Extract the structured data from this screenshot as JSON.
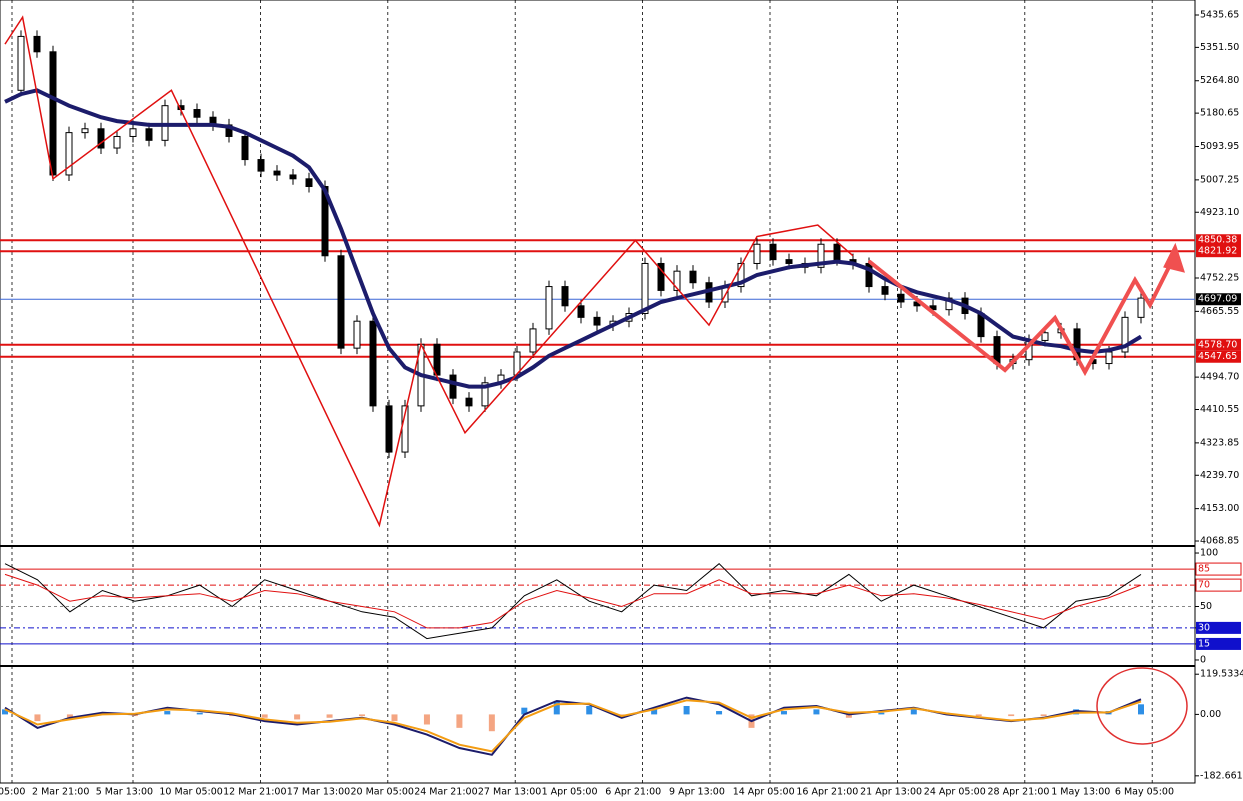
{
  "time_axis": [
    "05:00",
    "2 Mar 21:00",
    "5 Mar 13:00",
    "10 Mar 05:00",
    "12 Mar 21:00",
    "17 Mar 13:00",
    "20 Mar 05:00",
    "24 Mar 21:00",
    "27 Mar 13:00",
    "1 Apr 05:00",
    "6 Apr 21:00",
    "9 Apr 13:00",
    "14 Apr 05:00",
    "16 Apr 21:00",
    "21 Apr 13:00",
    "24 Apr 05:00",
    "28 Apr 21:00",
    "1 May 13:00",
    "6 May 05:00"
  ],
  "chart_data": [
    {
      "type": "line",
      "color": "#000000",
      "values": [
        5240,
        5380,
        5340,
        5020,
        5130,
        5140,
        5090,
        5120,
        5140,
        5110,
        5200,
        5190,
        5170,
        5150,
        5120,
        5060,
        5030,
        5020,
        5010,
        4990,
        4810,
        4570,
        4640,
        4420,
        4300,
        4420,
        4580,
        4500,
        4440,
        4420,
        4480,
        4500,
        4560,
        4620,
        4730,
        4680,
        4650,
        4630,
        4640,
        4660,
        4790,
        4720,
        4770,
        4740,
        4690,
        4730,
        4790,
        4840,
        4800,
        4790,
        4780,
        4840,
        4800,
        4790,
        4730,
        4710,
        4690,
        4680,
        4670,
        4700,
        4660,
        4600,
        4530,
        4540,
        4590,
        4610,
        4620,
        4540,
        4530,
        4560,
        4650,
        4700
      ],
      "moving_average": {
        "color": "#1c1c6b",
        "values": [
          5210,
          5230,
          5240,
          5220,
          5200,
          5185,
          5170,
          5160,
          5155,
          5150,
          5150,
          5150,
          5150,
          5150,
          5145,
          5130,
          5110,
          5090,
          5070,
          5040,
          4980,
          4880,
          4770,
          4660,
          4570,
          4520,
          4500,
          4490,
          4480,
          4470,
          4470,
          4480,
          4495,
          4520,
          4550,
          4570,
          4590,
          4610,
          4630,
          4650,
          4670,
          4690,
          4700,
          4710,
          4720,
          4730,
          4740,
          4760,
          4770,
          4780,
          4785,
          4790,
          4795,
          4790,
          4775,
          4750,
          4730,
          4715,
          4705,
          4695,
          4680,
          4660,
          4630,
          4600,
          4590,
          4580,
          4575,
          4565,
          4560,
          4565,
          4575,
          4600
        ]
      },
      "zigzag": {
        "color": "#e01010",
        "x": [
          0,
          1.1,
          3,
          10.4,
          23.4,
          26,
          28.75,
          39.4,
          44,
          47,
          50.8,
          53
        ],
        "y": [
          5360,
          5430,
          5010,
          5240,
          4110,
          4580,
          4350,
          4850,
          4630,
          4860,
          4890,
          4810
        ]
      },
      "ylim": [
        4058.5,
        5474.6
      ],
      "yticks": [
        5435.65,
        {
          "value": 5351.5,
          "label": "5351.50"
        },
        {
          "value": 5264.8,
          "label": "5264.80"
        },
        5180.65,
        5093.95,
        5007.25,
        {
          "value": 4923.1,
          "label": "4923.10"
        },
        4752.25,
        4665.55,
        {
          "value": 4494.7,
          "label": "4494.70"
        },
        4410.55,
        4323.85,
        {
          "value": 4239.7,
          "label": "4239.70"
        },
        {
          "value": 4153,
          "label": "4153.00"
        },
        4068.85
      ],
      "levels": [
        {
          "value": 4850.38,
          "color": "#e01010"
        },
        {
          "value": 4821.92,
          "color": "#e01010"
        },
        {
          "value": 4697.09,
          "color": "#3a66d6"
        },
        {
          "value": 4578.7,
          "label": "4578.70",
          "color": "#e01010"
        },
        {
          "value": 4547.65,
          "color": "#e01010"
        }
      ]
    },
    {
      "type": "line",
      "series": [
        {
          "color": "#000000",
          "values": [
            90,
            75,
            45,
            65,
            55,
            60,
            70,
            50,
            75,
            65,
            55,
            45,
            40,
            20,
            25,
            30,
            60,
            75,
            55,
            45,
            70,
            65,
            90,
            60,
            65,
            60,
            80,
            55,
            70,
            60,
            50,
            40,
            30,
            55,
            60,
            80
          ]
        },
        {
          "color": "#e01010",
          "values": [
            80,
            70,
            55,
            60,
            58,
            60,
            62,
            55,
            65,
            62,
            55,
            50,
            45,
            30,
            30,
            35,
            55,
            65,
            58,
            50,
            62,
            62,
            75,
            62,
            62,
            62,
            70,
            60,
            62,
            58,
            52,
            45,
            38,
            50,
            58,
            70
          ]
        }
      ],
      "ylim": [
        -4.7,
        104.7
      ],
      "yticks": [
        100,
        {
          "value": 85,
          "label": "85.0000"
        },
        {
          "value": 70,
          "label": "70.0000"
        },
        50,
        {
          "value": 30,
          "label": "30.0000"
        },
        {
          "value": 15,
          "label": "15.0000"
        },
        0
      ],
      "levels": [
        {
          "value": 85,
          "color": "#e01010"
        },
        {
          "value": 70,
          "color": "#e01010"
        },
        {
          "value": 50,
          "color": "#888888"
        },
        {
          "value": 30,
          "color": "#1010cc"
        },
        {
          "value": 15,
          "color": "#1010cc"
        }
      ]
    },
    {
      "type": "bar",
      "values": [
        15,
        -20,
        -10,
        5,
        -5,
        10,
        5,
        -5,
        -10,
        -15,
        -10,
        -5,
        -20,
        -30,
        -40,
        -50,
        20,
        40,
        25,
        -5,
        15,
        25,
        10,
        -40,
        10,
        15,
        -10,
        5,
        15,
        5,
        -5,
        -5,
        -5,
        15,
        10,
        30
      ],
      "colors": [
        "#2e8fe6",
        "#f4a582"
      ],
      "series": [
        {
          "color": "#1c1c6b",
          "values": [
            20,
            -40,
            -10,
            5,
            0,
            20,
            10,
            0,
            -20,
            -30,
            -20,
            -10,
            -30,
            -60,
            -100,
            -120,
            0,
            40,
            30,
            -10,
            20,
            50,
            30,
            -20,
            20,
            25,
            0,
            10,
            20,
            0,
            -10,
            -20,
            -10,
            10,
            5,
            45
          ]
        },
        {
          "color": "#f39c12",
          "values": [
            15,
            -30,
            -15,
            0,
            2,
            15,
            12,
            3,
            -15,
            -25,
            -22,
            -12,
            -25,
            -50,
            -90,
            -110,
            -10,
            30,
            32,
            -5,
            15,
            42,
            35,
            -10,
            15,
            22,
            5,
            8,
            18,
            3,
            -8,
            -18,
            -12,
            5,
            6,
            38
          ]
        }
      ],
      "ylim": [
        -204,
        138
      ],
      "yticks": [
        119.5334,
        {
          "value": 0,
          "label": "0.00"
        },
        -182.6615
      ]
    }
  ]
}
